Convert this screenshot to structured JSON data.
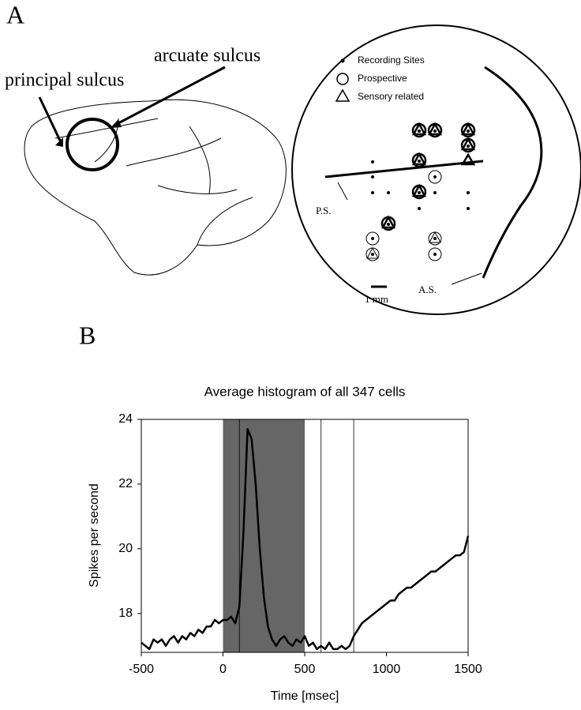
{
  "panel_a": {
    "label": "A",
    "brain_labels": [
      "arcuate sulcus",
      "principal sulcus"
    ],
    "map": {
      "legend": [
        "Recording Sites",
        "Prospective",
        "Sensory related"
      ],
      "ps_label": "P.S.",
      "as_label": "A.S.",
      "scale_label": "1 mm"
    }
  },
  "panel_b": {
    "label": "B"
  },
  "chart_data": {
    "type": "line",
    "title": "Average histogram of all 347 cells",
    "x_label": "Time [msec]",
    "y_label": "Spikes per second",
    "x": [
      -500,
      -475,
      -450,
      -425,
      -400,
      -375,
      -350,
      -325,
      -300,
      -275,
      -250,
      -225,
      -200,
      -175,
      -150,
      -125,
      -100,
      -75,
      -50,
      -25,
      0,
      25,
      50,
      75,
      100,
      125,
      150,
      175,
      200,
      225,
      250,
      275,
      300,
      325,
      350,
      375,
      400,
      425,
      450,
      475,
      500,
      525,
      550,
      575,
      600,
      625,
      650,
      675,
      700,
      725,
      750,
      775,
      800,
      825,
      850,
      875,
      900,
      925,
      950,
      975,
      1000,
      1025,
      1050,
      1075,
      1100,
      1125,
      1150,
      1175,
      1200,
      1225,
      1250,
      1275,
      1300,
      1325,
      1350,
      1375,
      1400,
      1425,
      1450,
      1475,
      1500
    ],
    "series": [
      {
        "color": "#000000",
        "values": [
          17.1,
          17.0,
          16.9,
          17.2,
          17.1,
          17.2,
          17.0,
          17.2,
          17.3,
          17.1,
          17.3,
          17.2,
          17.4,
          17.3,
          17.5,
          17.4,
          17.6,
          17.6,
          17.8,
          17.7,
          17.8,
          17.8,
          17.9,
          17.7,
          18.2,
          20.5,
          23.7,
          23.4,
          22.0,
          20.0,
          18.5,
          17.6,
          17.2,
          17.0,
          17.2,
          17.3,
          17.1,
          17.0,
          17.2,
          17.1,
          17.3,
          17.0,
          17.1,
          16.9,
          17.0,
          16.9,
          17.1,
          16.9,
          16.9,
          17.0,
          16.9,
          17.0,
          17.3,
          17.5,
          17.7,
          17.8,
          17.9,
          18.0,
          18.1,
          18.2,
          18.3,
          18.4,
          18.4,
          18.6,
          18.7,
          18.8,
          18.8,
          18.9,
          19.0,
          19.1,
          19.2,
          19.3,
          19.3,
          19.4,
          19.5,
          19.6,
          19.7,
          19.8,
          19.8,
          19.9,
          20.4
        ]
      }
    ],
    "xlim": [
      -500,
      1500
    ],
    "ylim": [
      16.8,
      24
    ],
    "xticks": [
      -500,
      0,
      500,
      1000,
      1500
    ],
    "yticks": [
      18,
      20,
      22,
      24
    ],
    "shaded_region": [
      0,
      500
    ],
    "shade_color": "#666666",
    "vlines": [
      100,
      600,
      800
    ]
  }
}
